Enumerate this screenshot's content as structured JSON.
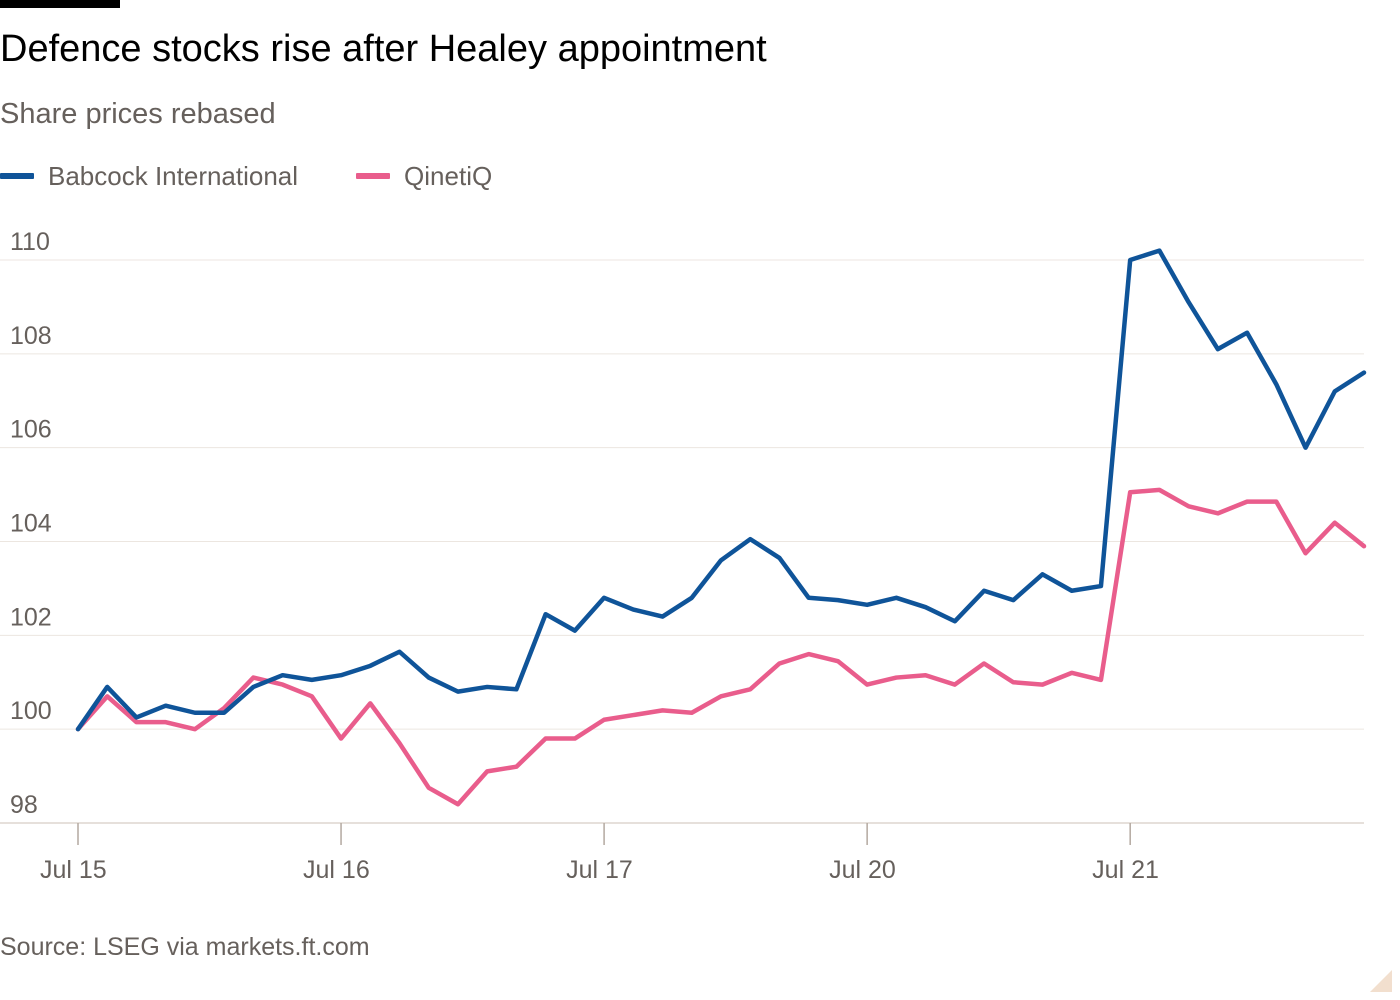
{
  "header": {
    "title": "Defence stocks rise after Healey appointment",
    "subtitle": "Share prices rebased"
  },
  "footer": {
    "source": "Source: LSEG via markets.ft.com"
  },
  "chart_data": {
    "type": "line",
    "title": "Defence stocks rise after Healey appointment",
    "subtitle": "Share prices rebased",
    "xlabel": "",
    "ylabel": "",
    "ylim": [
      98,
      110
    ],
    "yticks": [
      98,
      100,
      102,
      104,
      106,
      108,
      110
    ],
    "grid": true,
    "legend_position": "top-left",
    "x_ticks": [
      "Jul 15",
      "Jul 16",
      "Jul 17",
      "Jul 20",
      "Jul 21"
    ],
    "x_tick_index": [
      0,
      9,
      18,
      27,
      36
    ],
    "x_count": 45,
    "series": [
      {
        "name": "Babcock International",
        "color": "#0f5499",
        "values": [
          100.0,
          100.9,
          100.25,
          100.5,
          100.35,
          100.35,
          100.9,
          101.15,
          101.05,
          101.15,
          101.35,
          101.65,
          101.1,
          100.8,
          100.9,
          100.85,
          102.45,
          102.1,
          102.8,
          102.55,
          102.4,
          102.8,
          103.6,
          104.05,
          103.65,
          102.8,
          102.75,
          102.65,
          102.8,
          102.6,
          102.3,
          102.95,
          102.75,
          103.3,
          102.95,
          103.05,
          110.0,
          110.2,
          109.1,
          108.1,
          108.45,
          107.35,
          106.0,
          107.2,
          107.6
        ]
      },
      {
        "name": "QinetiQ",
        "color": "#e95d8c",
        "values": [
          100.0,
          100.7,
          100.15,
          100.15,
          100.0,
          100.45,
          101.1,
          100.95,
          100.7,
          99.8,
          100.55,
          99.7,
          98.75,
          98.4,
          99.1,
          99.2,
          99.8,
          99.8,
          100.2,
          100.3,
          100.4,
          100.35,
          100.7,
          100.85,
          101.4,
          101.6,
          101.45,
          100.95,
          101.1,
          101.15,
          100.95,
          101.4,
          101.0,
          100.95,
          101.2,
          101.05,
          105.05,
          105.1,
          104.75,
          104.6,
          104.85,
          104.85,
          103.75,
          104.4,
          103.9
        ]
      }
    ]
  }
}
